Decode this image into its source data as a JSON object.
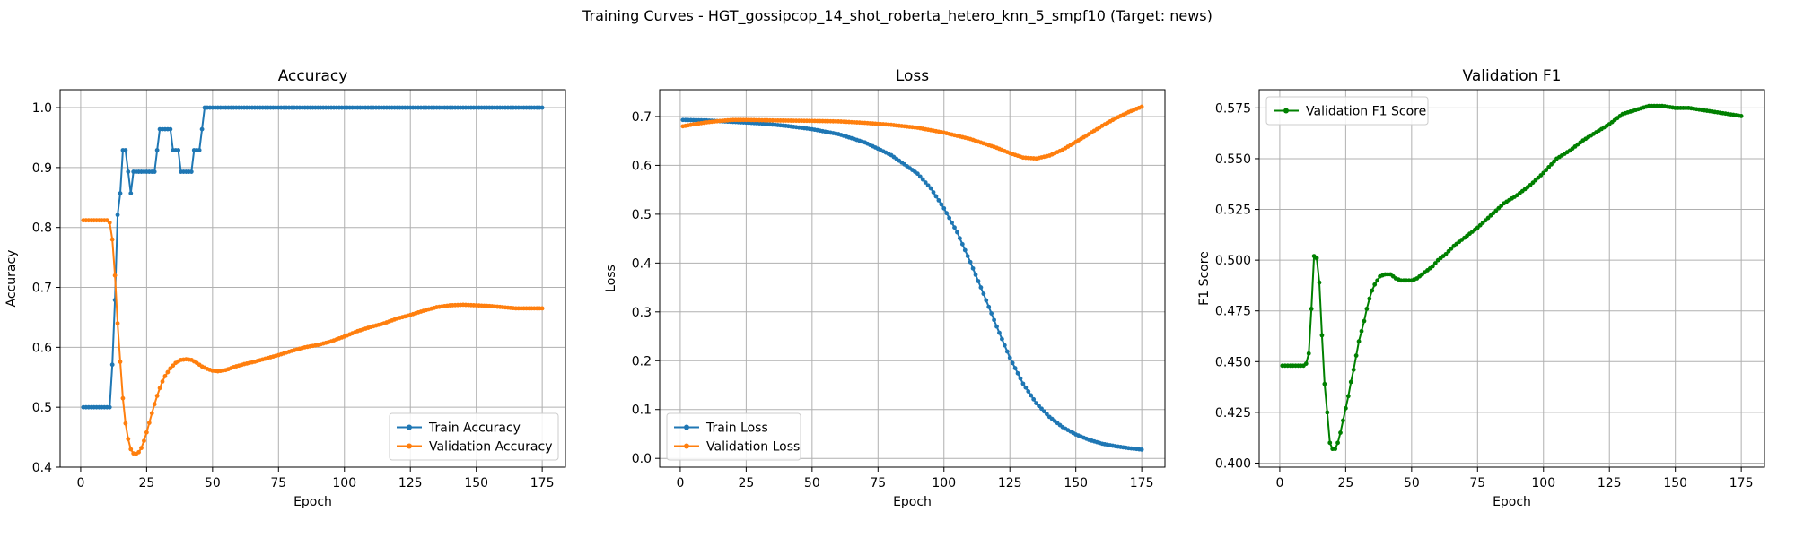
{
  "figure": {
    "title": "Training Curves - HGT_gossipcop_14_shot_roberta_hetero_knn_5_smpf10 (Target: news)"
  },
  "colors": {
    "train": "#1f77b4",
    "validation": "#ff7f0e",
    "f1": "#008000",
    "grid": "#b0b0b0"
  },
  "chart_data": [
    {
      "type": "line",
      "title": "Accuracy",
      "xlabel": "Epoch",
      "ylabel": "Accuracy",
      "xlim": [
        -7.8,
        183.8
      ],
      "ylim": [
        0.4,
        1.03
      ],
      "xticks": [
        0,
        25,
        50,
        75,
        100,
        125,
        150,
        175
      ],
      "yticks": [
        0.4,
        0.5,
        0.6,
        0.7,
        0.8,
        0.9,
        1.0
      ],
      "ytick_labels": [
        "0.4",
        "0.5",
        "0.6",
        "0.7",
        "0.8",
        "0.9",
        "1.0"
      ],
      "grid": true,
      "legend_position": "lower-right",
      "series": [
        {
          "name": "Train Accuracy",
          "color": "#1f77b4",
          "points": [
            [
              1,
              0.5
            ],
            [
              11,
              0.5
            ],
            [
              12,
              0.571
            ],
            [
              13,
              0.679
            ],
            [
              14,
              0.821
            ],
            [
              15,
              0.857
            ],
            [
              16,
              0.929
            ],
            [
              17,
              0.929
            ],
            [
              18,
              0.893
            ],
            [
              19,
              0.857
            ],
            [
              20,
              0.893
            ],
            [
              28,
              0.893
            ],
            [
              29,
              0.929
            ],
            [
              30,
              0.964
            ],
            [
              34,
              0.964
            ],
            [
              35,
              0.929
            ],
            [
              37,
              0.929
            ],
            [
              38,
              0.893
            ],
            [
              42,
              0.893
            ],
            [
              43,
              0.929
            ],
            [
              45,
              0.929
            ],
            [
              46,
              0.964
            ],
            [
              47,
              1.0
            ],
            [
              175,
              1.0
            ]
          ]
        },
        {
          "name": "Validation Accuracy",
          "color": "#ff7f0e",
          "points": [
            [
              1,
              0.812
            ],
            [
              10,
              0.812
            ],
            [
              11,
              0.808
            ],
            [
              12,
              0.78
            ],
            [
              13,
              0.72
            ],
            [
              14,
              0.64
            ],
            [
              15,
              0.576
            ],
            [
              16,
              0.515
            ],
            [
              17,
              0.473
            ],
            [
              18,
              0.447
            ],
            [
              19,
              0.43
            ],
            [
              20,
              0.423
            ],
            [
              21,
              0.422
            ],
            [
              22,
              0.425
            ],
            [
              23,
              0.432
            ],
            [
              24,
              0.444
            ],
            [
              25,
              0.458
            ],
            [
              26,
              0.474
            ],
            [
              27,
              0.49
            ],
            [
              28,
              0.505
            ],
            [
              29,
              0.519
            ],
            [
              30,
              0.532
            ],
            [
              31,
              0.543
            ],
            [
              32,
              0.552
            ],
            [
              34,
              0.565
            ],
            [
              36,
              0.574
            ],
            [
              38,
              0.579
            ],
            [
              40,
              0.58
            ],
            [
              42,
              0.579
            ],
            [
              44,
              0.574
            ],
            [
              46,
              0.568
            ],
            [
              48,
              0.564
            ],
            [
              50,
              0.561
            ],
            [
              52,
              0.56
            ],
            [
              55,
              0.562
            ],
            [
              58,
              0.567
            ],
            [
              62,
              0.572
            ],
            [
              66,
              0.576
            ],
            [
              70,
              0.581
            ],
            [
              75,
              0.587
            ],
            [
              80,
              0.594
            ],
            [
              85,
              0.6
            ],
            [
              90,
              0.604
            ],
            [
              95,
              0.61
            ],
            [
              100,
              0.618
            ],
            [
              105,
              0.627
            ],
            [
              110,
              0.634
            ],
            [
              115,
              0.64
            ],
            [
              120,
              0.648
            ],
            [
              125,
              0.654
            ],
            [
              130,
              0.661
            ],
            [
              135,
              0.667
            ],
            [
              140,
              0.67
            ],
            [
              145,
              0.671
            ],
            [
              150,
              0.67
            ],
            [
              155,
              0.669
            ],
            [
              160,
              0.667
            ],
            [
              165,
              0.665
            ],
            [
              170,
              0.665
            ],
            [
              175,
              0.665
            ]
          ]
        }
      ]
    },
    {
      "type": "line",
      "title": "Loss",
      "xlabel": "Epoch",
      "ylabel": "Loss",
      "xlim": [
        -7.8,
        183.8
      ],
      "ylim": [
        -0.018,
        0.755
      ],
      "xticks": [
        0,
        25,
        50,
        75,
        100,
        125,
        150,
        175
      ],
      "yticks": [
        0.0,
        0.1,
        0.2,
        0.3,
        0.4,
        0.5,
        0.6,
        0.7
      ],
      "ytick_labels": [
        "0.0",
        "0.1",
        "0.2",
        "0.3",
        "0.4",
        "0.5",
        "0.6",
        "0.7"
      ],
      "grid": true,
      "legend_position": "lower-left",
      "series": [
        {
          "name": "Train Loss",
          "color": "#1f77b4",
          "points": [
            [
              1,
              0.693
            ],
            [
              10,
              0.692
            ],
            [
              20,
              0.689
            ],
            [
              30,
              0.686
            ],
            [
              40,
              0.681
            ],
            [
              50,
              0.674
            ],
            [
              60,
              0.664
            ],
            [
              70,
              0.647
            ],
            [
              80,
              0.621
            ],
            [
              90,
              0.583
            ],
            [
              95,
              0.553
            ],
            [
              100,
              0.512
            ],
            [
              105,
              0.463
            ],
            [
              110,
              0.402
            ],
            [
              115,
              0.337
            ],
            [
              120,
              0.27
            ],
            [
              125,
              0.206
            ],
            [
              130,
              0.153
            ],
            [
              135,
              0.113
            ],
            [
              140,
              0.085
            ],
            [
              145,
              0.064
            ],
            [
              150,
              0.049
            ],
            [
              155,
              0.038
            ],
            [
              160,
              0.03
            ],
            [
              165,
              0.025
            ],
            [
              170,
              0.021
            ],
            [
              175,
              0.018
            ]
          ]
        },
        {
          "name": "Validation Loss",
          "color": "#ff7f0e",
          "points": [
            [
              1,
              0.68
            ],
            [
              5,
              0.684
            ],
            [
              10,
              0.688
            ],
            [
              15,
              0.691
            ],
            [
              20,
              0.693
            ],
            [
              25,
              0.693
            ],
            [
              35,
              0.692
            ],
            [
              50,
              0.691
            ],
            [
              60,
              0.69
            ],
            [
              70,
              0.687
            ],
            [
              80,
              0.683
            ],
            [
              90,
              0.677
            ],
            [
              100,
              0.667
            ],
            [
              110,
              0.654
            ],
            [
              120,
              0.636
            ],
            [
              125,
              0.625
            ],
            [
              130,
              0.616
            ],
            [
              135,
              0.614
            ],
            [
              140,
              0.62
            ],
            [
              145,
              0.632
            ],
            [
              150,
              0.648
            ],
            [
              155,
              0.664
            ],
            [
              160,
              0.681
            ],
            [
              165,
              0.696
            ],
            [
              170,
              0.709
            ],
            [
              175,
              0.72
            ]
          ]
        }
      ]
    },
    {
      "type": "line",
      "title": "Validation F1",
      "xlabel": "Epoch",
      "ylabel": "F1 Score",
      "xlim": [
        -7.8,
        183.8
      ],
      "ylim": [
        0.398,
        0.584
      ],
      "xticks": [
        0,
        25,
        50,
        75,
        100,
        125,
        150,
        175
      ],
      "yticks": [
        0.4,
        0.425,
        0.45,
        0.475,
        0.5,
        0.525,
        0.55,
        0.575
      ],
      "ytick_labels": [
        "0.400",
        "0.425",
        "0.450",
        "0.475",
        "0.500",
        "0.525",
        "0.550",
        "0.575"
      ],
      "grid": true,
      "legend_position": "upper-left",
      "series": [
        {
          "name": "Validation F1 Score",
          "color": "#008000",
          "points": [
            [
              1,
              0.448
            ],
            [
              9,
              0.448
            ],
            [
              10,
              0.449
            ],
            [
              11,
              0.454
            ],
            [
              12,
              0.476
            ],
            [
              13,
              0.502
            ],
            [
              14,
              0.501
            ],
            [
              15,
              0.489
            ],
            [
              16,
              0.463
            ],
            [
              17,
              0.439
            ],
            [
              18,
              0.425
            ],
            [
              19,
              0.41
            ],
            [
              20,
              0.407
            ],
            [
              21,
              0.407
            ],
            [
              22,
              0.41
            ],
            [
              23,
              0.415
            ],
            [
              24,
              0.421
            ],
            [
              25,
              0.427
            ],
            [
              26,
              0.433
            ],
            [
              27,
              0.44
            ],
            [
              28,
              0.446
            ],
            [
              29,
              0.453
            ],
            [
              30,
              0.46
            ],
            [
              31,
              0.465
            ],
            [
              32,
              0.47
            ],
            [
              33,
              0.476
            ],
            [
              34,
              0.481
            ],
            [
              35,
              0.485
            ],
            [
              36,
              0.488
            ],
            [
              37,
              0.49
            ],
            [
              38,
              0.492
            ],
            [
              40,
              0.493
            ],
            [
              42,
              0.493
            ],
            [
              44,
              0.491
            ],
            [
              46,
              0.49
            ],
            [
              48,
              0.49
            ],
            [
              50,
              0.49
            ],
            [
              52,
              0.491
            ],
            [
              55,
              0.494
            ],
            [
              58,
              0.497
            ],
            [
              60,
              0.5
            ],
            [
              63,
              0.503
            ],
            [
              66,
              0.507
            ],
            [
              70,
              0.511
            ],
            [
              75,
              0.516
            ],
            [
              80,
              0.522
            ],
            [
              85,
              0.528
            ],
            [
              90,
              0.532
            ],
            [
              95,
              0.537
            ],
            [
              100,
              0.543
            ],
            [
              105,
              0.55
            ],
            [
              110,
              0.554
            ],
            [
              115,
              0.559
            ],
            [
              120,
              0.563
            ],
            [
              125,
              0.567
            ],
            [
              130,
              0.572
            ],
            [
              135,
              0.574
            ],
            [
              140,
              0.576
            ],
            [
              145,
              0.576
            ],
            [
              150,
              0.575
            ],
            [
              155,
              0.575
            ],
            [
              160,
              0.574
            ],
            [
              165,
              0.573
            ],
            [
              170,
              0.572
            ],
            [
              175,
              0.571
            ]
          ]
        }
      ]
    }
  ]
}
